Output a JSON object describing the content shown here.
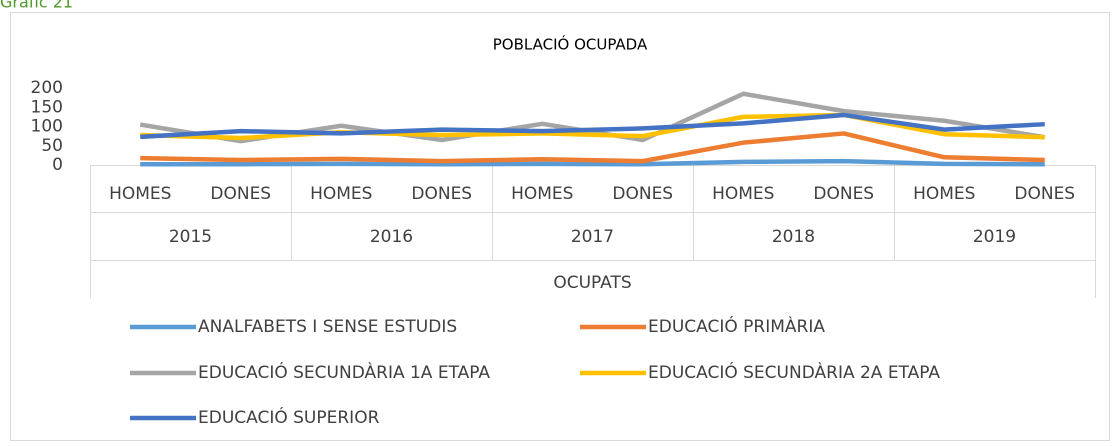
{
  "caption": "Gràfic 21",
  "chart_data": {
    "type": "line",
    "title": "POBLACIÓ OCUPADA",
    "categories": [
      "HOMES",
      "DONES",
      "HOMES",
      "DONES",
      "HOMES",
      "DONES",
      "HOMES",
      "DONES",
      "HOMES",
      "DONES"
    ],
    "category_groups": [
      "2015",
      "2016",
      "2017",
      "2018",
      "2019"
    ],
    "category_super": "OCUPATS",
    "ylim": [
      0,
      200
    ],
    "yticks": [
      0,
      50,
      100,
      150,
      200
    ],
    "grid": false,
    "legend": "bottom",
    "series": [
      {
        "name": "ANALFABETS I SENSE ESTUDIS",
        "color": "#5b9bd5",
        "values": [
          2,
          2,
          3,
          2,
          3,
          2,
          8,
          10,
          3,
          2
        ]
      },
      {
        "name": "EDUCACIÓ PRIMÀRIA",
        "color": "#ed7d31",
        "values": [
          18,
          13,
          16,
          10,
          15,
          10,
          58,
          82,
          20,
          13
        ]
      },
      {
        "name": "EDUCACIÓ SECUNDÀRIA 1A ETAPA",
        "color": "#a5a5a5",
        "values": [
          105,
          62,
          102,
          65,
          107,
          65,
          185,
          140,
          115,
          72
        ]
      },
      {
        "name": "EDUCACIÓ SECUNDÀRIA 2A ETAPA",
        "color": "#ffc000",
        "values": [
          78,
          70,
          85,
          78,
          82,
          75,
          125,
          130,
          80,
          72
        ]
      },
      {
        "name": "EDUCACIÓ SUPERIOR",
        "color": "#4472c4",
        "values": [
          73,
          88,
          82,
          92,
          88,
          95,
          108,
          130,
          92,
          106
        ]
      }
    ]
  }
}
